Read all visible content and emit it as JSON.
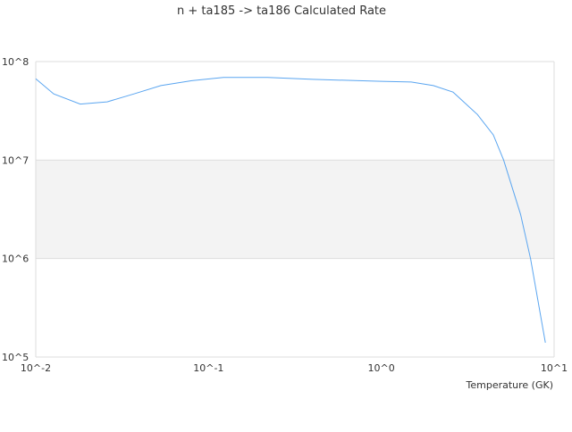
{
  "chart_data": {
    "type": "line",
    "title": "n + ta185 -> ta186 Calculated Rate",
    "xlabel": "Temperature (GK)",
    "ylabel": "",
    "x_scale": "log",
    "y_scale": "log",
    "xlim": [
      0.01,
      10
    ],
    "ylim": [
      100000,
      100000000
    ],
    "x_tick_labels": [
      "10^-2",
      "10^-1",
      "10^0",
      "10^1"
    ],
    "y_tick_labels": [
      "10^5",
      "10^6",
      "10^7",
      "10^8"
    ],
    "grid": true,
    "alternating_band": true,
    "legend": "none",
    "colors": {
      "line": "#5aa5f0",
      "band": "#f3f3f3",
      "grid": "#dddddd"
    },
    "series": [
      {
        "x": [
          0.01,
          0.0127,
          0.0181,
          0.0259,
          0.037,
          0.053,
          0.08,
          0.122,
          0.22,
          0.4,
          1.0,
          1.49,
          2.0,
          2.6,
          3.6,
          4.45,
          5.1,
          6.4,
          7.3,
          8.9
        ],
        "y": [
          67000000,
          47000000,
          37000000,
          39000000,
          47000000,
          57000000,
          64000000,
          69000000,
          69000000,
          66000000,
          63000000,
          62000000,
          57000000,
          49000000,
          29000000,
          18000000,
          10000000,
          2800000,
          1000000,
          140000
        ]
      }
    ]
  }
}
